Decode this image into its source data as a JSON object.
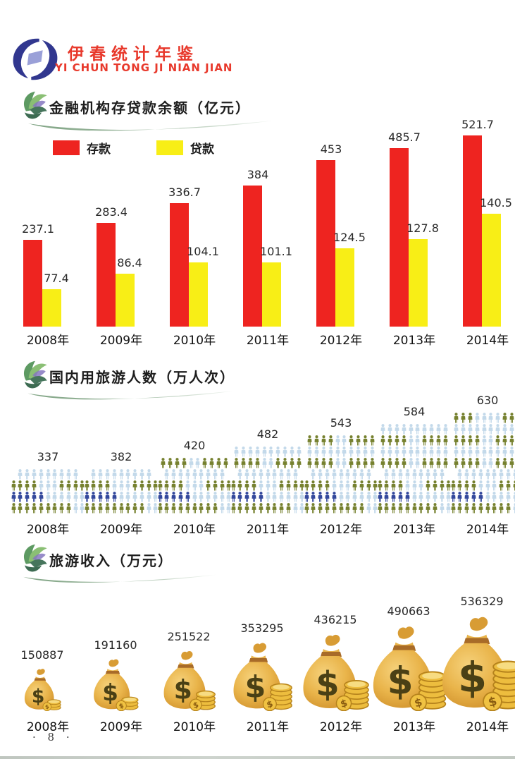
{
  "page": {
    "publication_title": "伊春统计年鉴",
    "publication_subtitle": "YI CHUN TONG JI NIAN JIAN",
    "page_number": "· 8 ·"
  },
  "chart_data": [
    {
      "type": "bar",
      "title": "金融机构存贷款余额（亿元）",
      "categories": [
        "2008年",
        "2009年",
        "2010年",
        "2011年",
        "2012年",
        "2013年",
        "2014年"
      ],
      "series": [
        {
          "name": "存款",
          "color": "#ee2420",
          "values": [
            237.1,
            283.4,
            336.7,
            384,
            453,
            485.7,
            521.7
          ]
        },
        {
          "name": "贷款",
          "color": "#f8ee16",
          "values": [
            77.4,
            86.4,
            104.1,
            101.1,
            124.5,
            127.8,
            140.5
          ]
        }
      ],
      "legend_position": "top",
      "grid": false,
      "value_labels": true
    },
    {
      "type": "pictograph",
      "icon": "person-icon",
      "title": "国内用旅游人数（万人次）",
      "categories": [
        "2008年",
        "2009年",
        "2010年",
        "2011年",
        "2012年",
        "2013年",
        "2014年"
      ],
      "values": [
        337,
        382,
        420,
        482,
        543,
        584,
        630
      ],
      "icon_colors": {
        "pale_blue": "#c3d9ea",
        "olive_green": "#76812f",
        "navy_blue": "#33489c"
      },
      "value_labels": true
    },
    {
      "type": "pictograph",
      "icon": "money-bag-icon",
      "title": "旅游收入（万元）",
      "categories": [
        "2008年",
        "2009年",
        "2010年",
        "2011年",
        "2012年",
        "2013年",
        "2014年"
      ],
      "values": [
        150887,
        191160,
        251522,
        353295,
        436215,
        490663,
        536329
      ],
      "icon_colors": {
        "bag_gold": "#e9b44a",
        "coin_gold": "#edbd3e",
        "dollar_dark": "#4a4015"
      },
      "value_labels": true
    }
  ]
}
